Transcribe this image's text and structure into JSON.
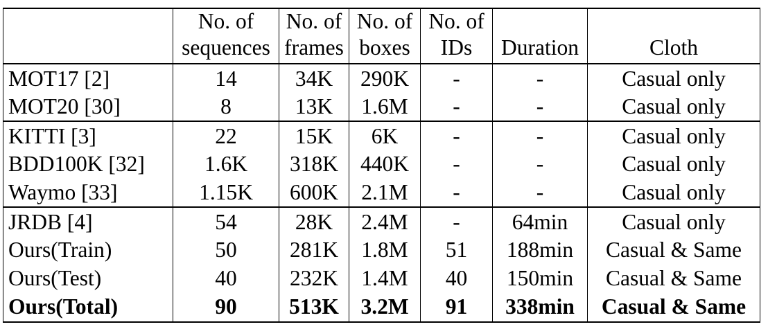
{
  "table": {
    "header_row1": [
      "",
      "No. of",
      "No. of",
      "No. of",
      "No. of",
      "",
      ""
    ],
    "header_row2": [
      "",
      "sequences",
      "frames",
      "boxes",
      "IDs",
      "Duration",
      "Cloth"
    ],
    "groups": [
      [
        [
          "MOT17 [2]",
          "14",
          "34K",
          "290K",
          "-",
          "-",
          "Casual only"
        ],
        [
          "MOT20 [30]",
          "8",
          "13K",
          "1.6M",
          "-",
          "-",
          "Casual only"
        ]
      ],
      [
        [
          "KITTI [3]",
          "22",
          "15K",
          "6K",
          "-",
          "-",
          "Casual only"
        ],
        [
          "BDD100K [32]",
          "1.6K",
          "318K",
          "440K",
          "-",
          "-",
          "Casual only"
        ],
        [
          "Waymo [33]",
          "1.15K",
          "600K",
          "2.1M",
          "-",
          "-",
          "Casual only"
        ]
      ],
      [
        [
          "JRDB [4]",
          "54",
          "28K",
          "2.4M",
          "-",
          "64min",
          "Casual only"
        ],
        [
          "Ours(Train)",
          "50",
          "281K",
          "1.8M",
          "51",
          "188min",
          "Casual & Same"
        ],
        [
          "Ours(Test)",
          "40",
          "232K",
          "1.4M",
          "40",
          "150min",
          "Casual & Same"
        ],
        [
          "Ours(Total)",
          "90",
          "513K",
          "3.2M",
          "91",
          "338min",
          "Casual & Same"
        ]
      ]
    ]
  }
}
